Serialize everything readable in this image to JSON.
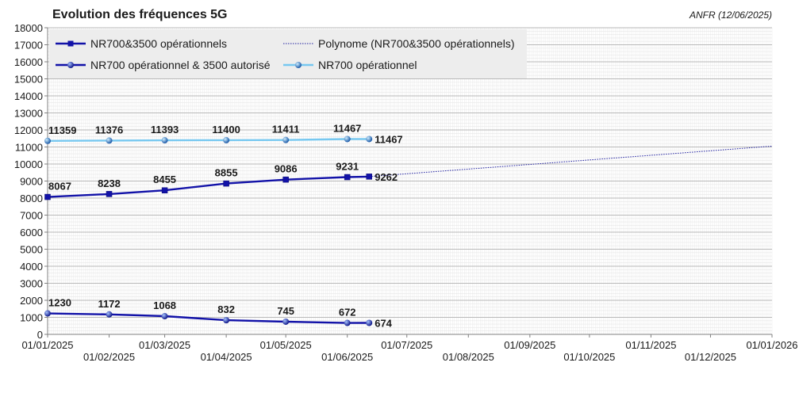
{
  "chart_data": {
    "type": "line",
    "title": "Evolution des fréquences 5G",
    "subtitle": "ANFR (12/06/2025)",
    "xlabel": "",
    "ylabel": "",
    "ylim": [
      0,
      18000
    ],
    "yticks": [
      0,
      1000,
      2000,
      3000,
      4000,
      5000,
      6000,
      7000,
      8000,
      9000,
      10000,
      11000,
      12000,
      13000,
      14000,
      15000,
      16000,
      17000,
      18000
    ],
    "xlim": [
      "2025-01-01",
      "2026-01-01"
    ],
    "xticks": [
      "01/01/2025",
      "01/02/2025",
      "01/03/2025",
      "01/04/2025",
      "01/05/2025",
      "01/06/2025",
      "01/07/2025",
      "01/08/2025",
      "01/09/2025",
      "01/10/2025",
      "01/11/2025",
      "01/12/2025",
      "01/01/2026"
    ],
    "x": [
      "2025-01-01",
      "2025-02-01",
      "2025-03-01",
      "2025-04-01",
      "2025-05-01",
      "2025-06-01",
      "2025-06-12"
    ],
    "grid": true,
    "legend_position": "top-left",
    "series": [
      {
        "name": "NR700&3500 opérationnels",
        "color": "#1212a8",
        "marker": "square",
        "values": [
          8067,
          8238,
          8455,
          8855,
          9086,
          9231,
          9262
        ],
        "labels": [
          "8067",
          "8238",
          "8455",
          "8855",
          "9086",
          "9231",
          "9262"
        ]
      },
      {
        "name": "NR700 opérationnel & 3500 autorisé",
        "color": "#1212a8",
        "marker": "circle",
        "values": [
          1230,
          1172,
          1068,
          832,
          745,
          672,
          674
        ],
        "labels": [
          "1230",
          "1172",
          "1068",
          "832",
          "745",
          "672",
          "674"
        ]
      },
      {
        "name": "NR700 opérationnel",
        "color": "#77c8f0",
        "marker": "circle",
        "values": [
          11359,
          11376,
          11393,
          11400,
          11411,
          11467,
          11467
        ],
        "labels": [
          "11359",
          "11376",
          "11393",
          "11400",
          "11411",
          "11467",
          "11467"
        ]
      }
    ],
    "trendline": {
      "name": "Polynome (NR700&3500 opérationnels)",
      "color": "#2020a0",
      "style": "dotted",
      "x": [
        "2025-06-12",
        "2026-01-01"
      ],
      "values": [
        9262,
        11050
      ]
    }
  }
}
